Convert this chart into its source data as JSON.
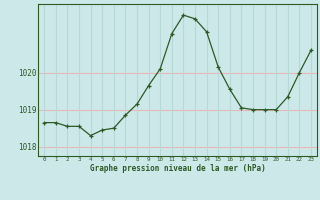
{
  "x": [
    0,
    1,
    2,
    3,
    4,
    5,
    6,
    7,
    8,
    9,
    10,
    11,
    12,
    13,
    14,
    15,
    16,
    17,
    18,
    19,
    20,
    21,
    22,
    23
  ],
  "y": [
    1018.65,
    1018.65,
    1018.55,
    1018.55,
    1018.3,
    1018.45,
    1018.5,
    1018.85,
    1019.15,
    1019.65,
    1020.1,
    1021.05,
    1021.55,
    1021.45,
    1021.1,
    1020.15,
    1019.55,
    1019.05,
    1019.0,
    1019.0,
    1019.0,
    1019.35,
    1020.0,
    1020.6
  ],
  "line_color": "#2d5a27",
  "marker": "+",
  "marker_color": "#2d5a27",
  "bg_color": "#cce8e8",
  "plot_bg_color": "#cce8e8",
  "xlabel": "Graphe pression niveau de la mer (hPa)",
  "xlabel_color": "#2d5a27",
  "ytick_labels": [
    "1018",
    "1019",
    "1020"
  ],
  "ytick_values": [
    1018.0,
    1019.0,
    1020.0
  ],
  "ylim": [
    1017.75,
    1021.85
  ],
  "xlim": [
    -0.5,
    23.5
  ],
  "tick_color": "#2d5a27",
  "spine_color": "#2d5a27",
  "hgrid_color": "#e8b8b8",
  "vgrid_color": "#b8d8d8"
}
